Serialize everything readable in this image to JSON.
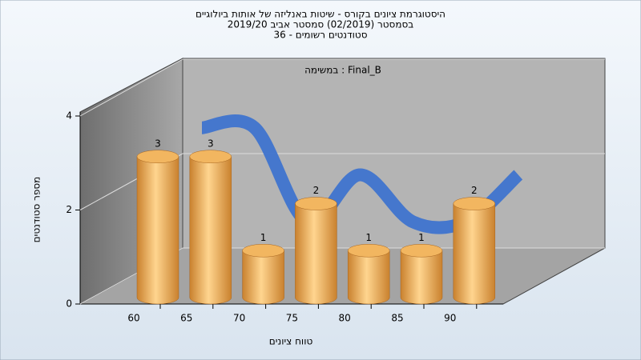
{
  "chart_data": {
    "type": "bar3d",
    "title": [
      "היסטוגרמת ציונים בקורס - שיטות באנליזה של אותות ביולוגיים",
      "בסמסטר  (02/2019)  סמסטר אביב 2019/20",
      "סטודנטים רשומים - 36"
    ],
    "annotation": "במשימה : Final_B",
    "x_label": "טווח ציונים",
    "y_label": "מספר סטודנטים",
    "categories": [
      "60",
      "65",
      "70",
      "75",
      "80",
      "85",
      "90"
    ],
    "values": [
      3,
      3,
      1,
      2,
      1,
      1,
      2
    ],
    "color": "#e8a24a",
    "curve_color": "#3f74cf",
    "ylim": [
      0,
      4
    ],
    "yticks": [
      0,
      2,
      4
    ],
    "grid": true
  }
}
